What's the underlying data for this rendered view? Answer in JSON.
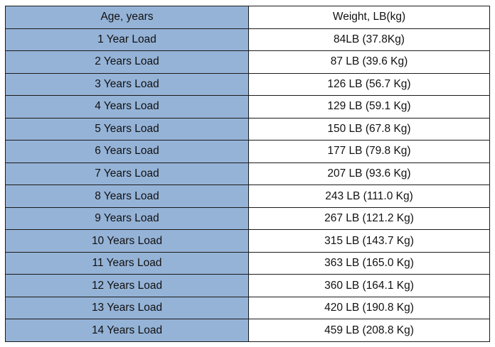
{
  "table": {
    "header": [
      "Age, years",
      "Weight, LB(kg)"
    ],
    "rows": [
      [
        "1 Year Load",
        "84LB (37.8Kg)"
      ],
      [
        "2 Years Load",
        "87 LB (39.6 Kg)"
      ],
      [
        "3 Years Load",
        "126 LB (56.7 Kg)"
      ],
      [
        "4 Years Load",
        "129 LB (59.1 Kg)"
      ],
      [
        "5 Years Load",
        "150 LB (67.8 Kg)"
      ],
      [
        "6 Years Load",
        "177 LB (79.8 Kg)"
      ],
      [
        "7 Years Load",
        "207 LB (93.6 Kg)"
      ],
      [
        "8 Years Load",
        "243 LB (111.0 Kg)"
      ],
      [
        "9 Years Load",
        "267 LB (121.2 Kg)"
      ],
      [
        "10 Years Load",
        "315 LB (143.7 Kg)"
      ],
      [
        "11 Years Load",
        "363 LB (165.0 Kg)"
      ],
      [
        "12 Years Load",
        "360 LB (164.1 Kg)"
      ],
      [
        "13 Years Load",
        "420 LB (190.8 Kg)"
      ],
      [
        "14 Years Load",
        "459 LB (208.8 Kg)"
      ]
    ]
  }
}
